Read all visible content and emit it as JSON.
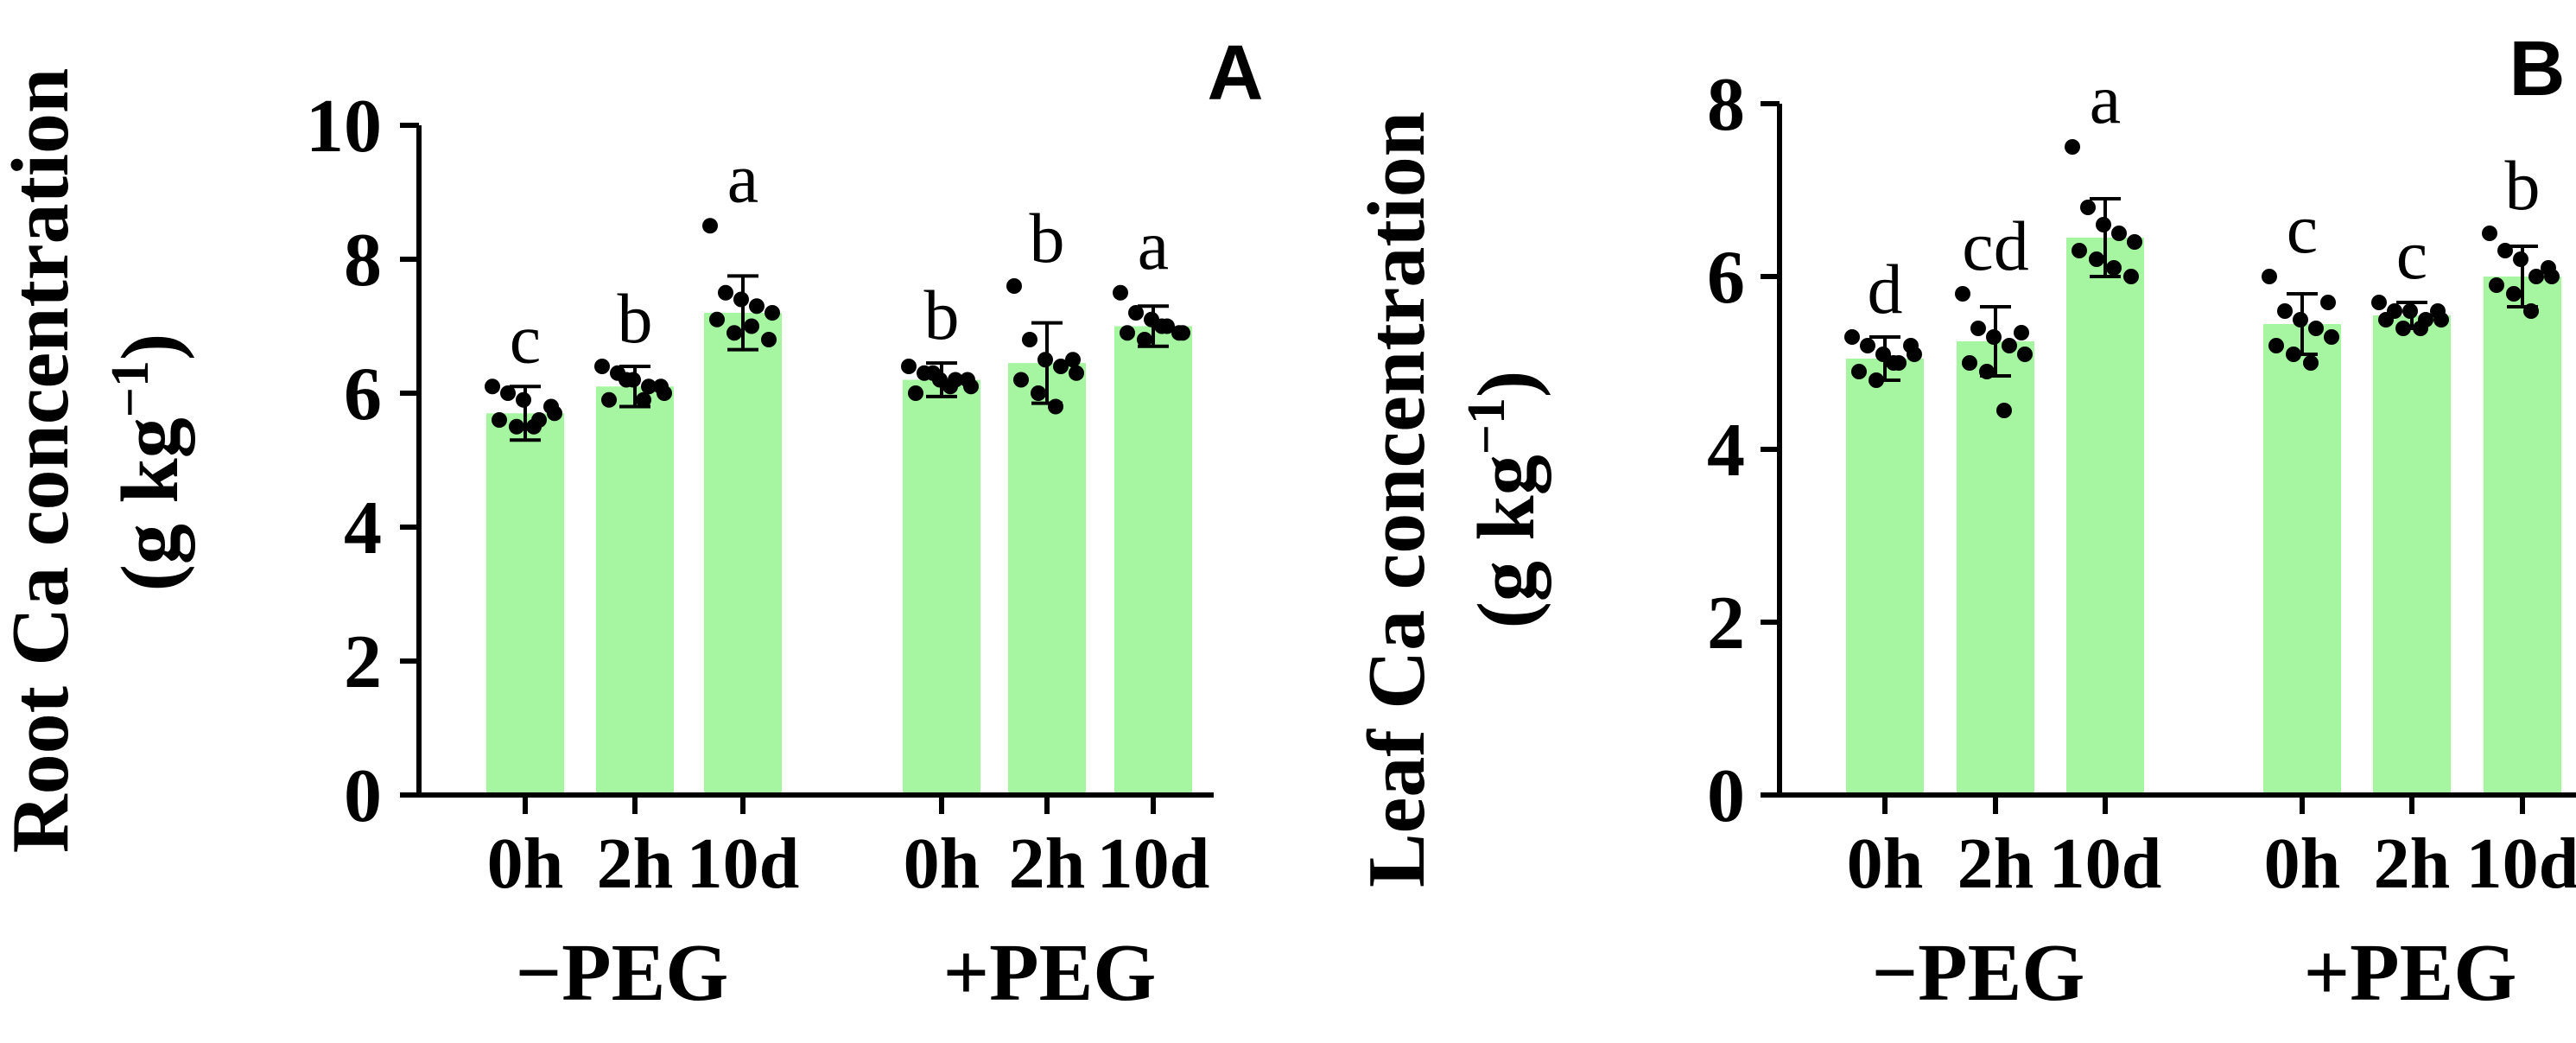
{
  "figure": {
    "bar_color": "#a6f5a0",
    "axis_color": "#000000",
    "dot_color": "#000000"
  },
  "chart_data": [
    {
      "type": "bar",
      "panel": "A",
      "ylabel_main": "Root Ca concentration",
      "ylabel_unit_base": "(g kg",
      "ylabel_unit_sup": "−1",
      "ylabel_unit_close": ")",
      "ylim": [
        0,
        10
      ],
      "yticks": [
        0,
        2,
        4,
        6,
        8,
        10
      ],
      "groups": [
        {
          "label": "−PEG",
          "categories": [
            "0h",
            "2h",
            "10d"
          ]
        },
        {
          "label": "+PEG",
          "categories": [
            "0h",
            "2h",
            "10d"
          ]
        }
      ],
      "values": [
        5.7,
        6.1,
        7.2,
        6.2,
        6.45,
        7.0
      ],
      "errors": [
        0.4,
        0.3,
        0.55,
        0.25,
        0.6,
        0.3
      ],
      "letters": [
        "c",
        "b",
        "a",
        "b",
        "b",
        "a"
      ],
      "points": [
        [
          6.1,
          6.0,
          5.9,
          5.6,
          5.7,
          5.6,
          5.5,
          5.5,
          5.8
        ],
        [
          6.4,
          6.3,
          6.2,
          6.1,
          6.0,
          5.9,
          6.2,
          5.9,
          6.1
        ],
        [
          8.5,
          7.5,
          7.4,
          7.3,
          7.2,
          7.1,
          6.9,
          7.0,
          6.8
        ],
        [
          6.4,
          6.3,
          6.2,
          6.2,
          6.1,
          6.0,
          6.3,
          6.1,
          6.2
        ],
        [
          7.6,
          6.8,
          6.5,
          6.4,
          6.3,
          6.2,
          6.0,
          5.8,
          6.5
        ],
        [
          7.5,
          7.2,
          7.1,
          7.0,
          6.9,
          6.9,
          6.8,
          7.0,
          6.9
        ]
      ]
    },
    {
      "type": "bar",
      "panel": "B",
      "ylabel_main": "Leaf Ca concentration",
      "ylabel_unit_base": "(g kg",
      "ylabel_unit_sup": "−1",
      "ylabel_unit_close": ")",
      "ylim": [
        0,
        8
      ],
      "yticks": [
        0,
        2,
        4,
        6,
        8
      ],
      "groups": [
        {
          "label": "−PEG",
          "categories": [
            "0h",
            "2h",
            "10d"
          ]
        },
        {
          "label": "+PEG",
          "categories": [
            "0h",
            "2h",
            "10d"
          ]
        }
      ],
      "values": [
        5.05,
        5.25,
        6.45,
        5.45,
        5.55,
        6.0
      ],
      "errors": [
        0.25,
        0.4,
        0.45,
        0.35,
        0.15,
        0.35
      ],
      "letters": [
        "d",
        "cd",
        "a",
        "c",
        "c",
        "b"
      ],
      "points": [
        [
          5.3,
          5.2,
          5.1,
          5.0,
          5.1,
          4.9,
          4.8,
          5.0,
          5.2
        ],
        [
          5.8,
          5.4,
          5.3,
          5.2,
          5.1,
          5.0,
          4.9,
          4.45,
          5.35
        ],
        [
          7.5,
          6.8,
          6.6,
          6.5,
          6.4,
          6.3,
          6.2,
          6.1,
          6.0
        ],
        [
          6.0,
          5.6,
          5.5,
          5.4,
          5.3,
          5.2,
          5.1,
          5.0,
          5.7
        ],
        [
          5.7,
          5.6,
          5.6,
          5.5,
          5.5,
          5.5,
          5.4,
          5.4,
          5.6
        ],
        [
          6.5,
          6.3,
          6.2,
          6.0,
          6.0,
          5.9,
          5.8,
          5.6,
          6.1
        ]
      ]
    }
  ]
}
